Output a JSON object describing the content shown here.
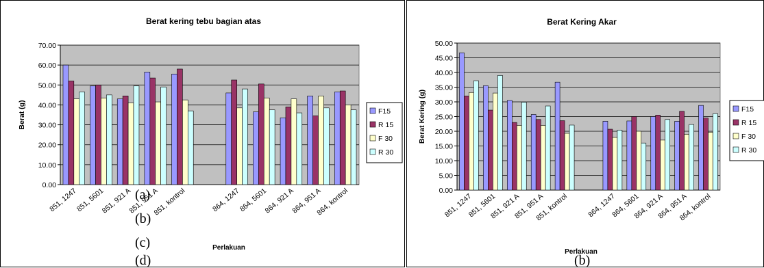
{
  "captions": {
    "left": [
      "(a)",
      "(b)",
      "(c)",
      "(d)"
    ],
    "right": [
      "(b)"
    ]
  },
  "chart_data": [
    {
      "type": "bar",
      "title": "Berat kering  tebu bagian atas",
      "xlabel": "Perlakuan",
      "ylabel": "Berat (g)",
      "ylim": [
        0,
        70
      ],
      "y_ticks": [
        "0.00",
        "10.00",
        "20.00",
        "30.00",
        "40.00",
        "50.00",
        "60.00",
        "70.00"
      ],
      "categories": [
        "851, 1247",
        "851, 5601",
        "851, 921 A",
        "851, 951 A",
        "851, kontrol",
        "",
        "864, 1247",
        "864, 5601",
        "864, 921 A",
        "864, 951 A",
        "864, kontrol"
      ],
      "series": [
        {
          "name": "F15",
          "color": "#9999ff",
          "values": [
            60.0,
            49.5,
            43.0,
            56.5,
            55.5,
            null,
            46.0,
            36.5,
            33.5,
            44.5,
            46.5
          ]
        },
        {
          "name": "R 15",
          "color": "#993366",
          "values": [
            52.0,
            50.0,
            44.5,
            53.5,
            58.0,
            null,
            52.5,
            50.5,
            39.0,
            34.5,
            47.0
          ]
        },
        {
          "name": "F 30",
          "color": "#ffffcc",
          "values": [
            43.0,
            43.5,
            41.0,
            41.5,
            42.5,
            null,
            38.5,
            43.5,
            43.0,
            44.5,
            40.0
          ]
        },
        {
          "name": "R 30",
          "color": "#ccffff",
          "values": [
            46.5,
            45.0,
            49.5,
            49.0,
            37.0,
            null,
            48.0,
            37.5,
            36.0,
            38.5,
            37.5
          ]
        }
      ],
      "legend_position": "right",
      "grid": true,
      "plot_background": "#c0c0c0"
    },
    {
      "type": "bar",
      "title": "Berat Kering Akar",
      "xlabel": "Perlakuan",
      "ylabel": "Berat Kering (g)",
      "ylim": [
        0,
        50
      ],
      "y_ticks": [
        "0.00",
        "5.00",
        "10.00",
        "15.00",
        "20.00",
        "25.00",
        "30.00",
        "35.00",
        "40.00",
        "45.00",
        "50.00"
      ],
      "categories": [
        "851, 1247",
        "851, 5601",
        "851, 921 A",
        "851, 951 A",
        "851, kontrol",
        "",
        "864, 1247",
        "864, 5601",
        "864, 921 A",
        "864, 951 A",
        "864, kontrol"
      ],
      "series": [
        {
          "name": "F15",
          "color": "#9999ff",
          "values": [
            46.7,
            35.5,
            30.5,
            25.7,
            36.7,
            null,
            23.4,
            23.5,
            25.0,
            23.4,
            28.8
          ]
        },
        {
          "name": "R 15",
          "color": "#993366",
          "values": [
            32.0,
            27.2,
            23.0,
            24.0,
            23.6,
            null,
            20.7,
            25.0,
            25.5,
            26.8,
            24.5
          ]
        },
        {
          "name": "F 30",
          "color": "#ffffcc",
          "values": [
            33.2,
            33.0,
            22.0,
            22.0,
            19.3,
            null,
            17.9,
            20.0,
            17.0,
            19.0,
            19.7
          ]
        },
        {
          "name": "R 30",
          "color": "#ccffff",
          "values": [
            37.2,
            39.0,
            29.9,
            28.6,
            22.1,
            null,
            20.4,
            16.0,
            24.0,
            22.3,
            26.0
          ]
        }
      ],
      "legend_position": "right",
      "grid": true,
      "plot_background": "#c0c0c0"
    }
  ]
}
